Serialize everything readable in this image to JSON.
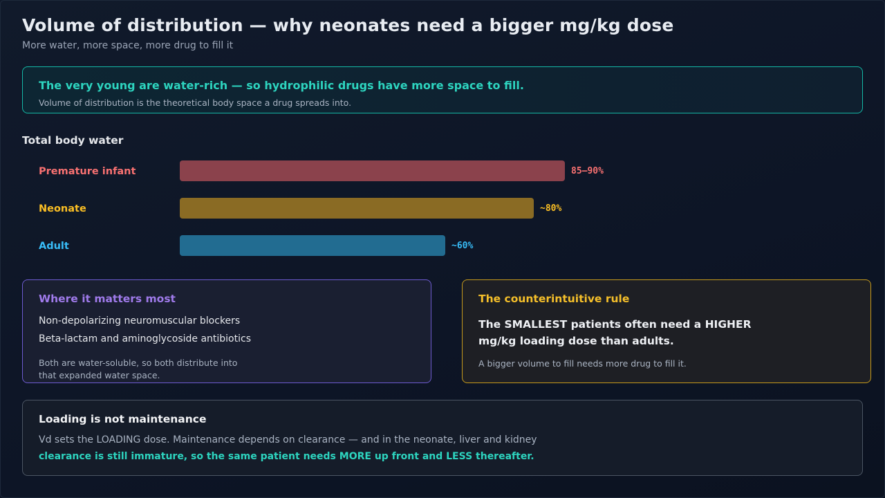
{
  "header": {
    "title": "Volume of distribution — why neonates need a bigger mg/kg dose",
    "subtitle": "More water, more space, more drug to fill it"
  },
  "callout": {
    "headline": "The very young are water-rich — so hydrophilic drugs have more space to fill.",
    "body": "Volume of distribution is the theoretical body space a drug spreads into."
  },
  "chart_data": {
    "type": "bar",
    "orientation": "horizontal",
    "title": "Total body water",
    "categories": [
      "Premature infant",
      "Neonate",
      "Adult"
    ],
    "values": [
      87,
      80,
      60
    ],
    "value_labels": [
      "85–90%",
      "~80%",
      "~60%"
    ],
    "units": "%",
    "colors": [
      "#8b424c",
      "#8a6b24",
      "#226c91"
    ],
    "label_colors": [
      "#f87171",
      "#fbbf24",
      "#38bdf8"
    ],
    "xlim": [
      0,
      100
    ],
    "grid": false
  },
  "where": {
    "title": "Where it matters most",
    "items": [
      "Non-depolarizing neuromuscular blockers",
      "Beta-lactam and aminoglycoside antibiotics"
    ],
    "note_line1": "Both are water-soluble, so both distribute into",
    "note_line2": "that expanded water space."
  },
  "rule": {
    "title": "The counterintuitive rule",
    "main_line1": "The SMALLEST patients often need a HIGHER",
    "main_line2": "mg/kg loading dose than adults.",
    "note": "A bigger volume to fill needs more drug to fill it."
  },
  "loading": {
    "title": "Loading is not maintenance",
    "line1": "Vd sets the LOADING dose. Maintenance depends on clearance — and in the neonate, liver and kidney",
    "line2": "clearance is still immature, so the same patient needs MORE up front and LESS thereafter."
  }
}
